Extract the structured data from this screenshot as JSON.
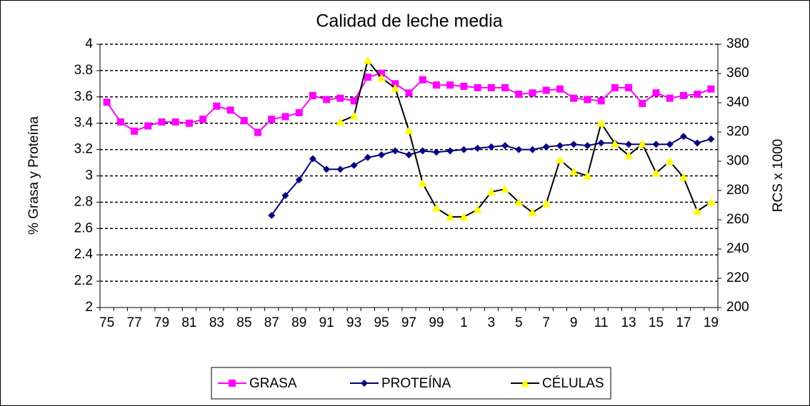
{
  "chart_data": {
    "type": "line",
    "title": "Calidad de leche media",
    "y_label": "% Grasa y Proteína",
    "y2_label": "RCS x 1000",
    "categories": [
      "75",
      null,
      "77",
      null,
      "79",
      null,
      "81",
      null,
      "83",
      null,
      "85",
      null,
      "87",
      null,
      "89",
      null,
      "91",
      null,
      "93",
      null,
      "95",
      null,
      "97",
      null,
      "99",
      null,
      "1",
      null,
      "3",
      null,
      "5",
      null,
      "7",
      null,
      "9",
      null,
      "11",
      null,
      "13",
      null,
      "15",
      null,
      "17",
      null,
      "19"
    ],
    "ylim": [
      2,
      4
    ],
    "yticks": [
      2,
      2.2,
      2.4,
      2.6,
      2.8,
      3,
      3.2,
      3.4,
      3.6,
      3.8,
      4
    ],
    "y2lim": [
      200,
      380
    ],
    "y2ticks": [
      200,
      220,
      240,
      260,
      280,
      300,
      320,
      340,
      360,
      380
    ],
    "grid": true,
    "legend": "bottom",
    "series": [
      {
        "name": "GRASA",
        "color": "#ff00ff",
        "marker": "square",
        "values": [
          3.56,
          3.41,
          3.34,
          3.38,
          3.41,
          3.41,
          3.4,
          3.43,
          3.53,
          3.5,
          3.42,
          3.33,
          3.43,
          3.45,
          3.48,
          3.61,
          3.58,
          3.59,
          3.57,
          3.75,
          3.78,
          3.7,
          3.63,
          3.73,
          3.69,
          3.69,
          3.68,
          3.67,
          3.67,
          3.67,
          3.62,
          3.63,
          3.65,
          3.66,
          3.59,
          3.58,
          3.57,
          3.67,
          3.67,
          3.55,
          3.63,
          3.59,
          3.61,
          3.62,
          3.66
        ]
      },
      {
        "name": "PROTEÍNA",
        "color": "#000080",
        "marker": "diamond",
        "values": [
          null,
          null,
          null,
          null,
          null,
          null,
          null,
          null,
          null,
          null,
          null,
          null,
          2.7,
          2.85,
          2.97,
          3.13,
          3.05,
          3.05,
          3.08,
          3.14,
          3.16,
          3.19,
          3.16,
          3.19,
          3.18,
          3.19,
          3.2,
          3.21,
          3.22,
          3.23,
          3.2,
          3.2,
          3.22,
          3.23,
          3.24,
          3.23,
          3.25,
          3.25,
          3.24,
          3.24,
          3.24,
          3.24,
          3.3,
          3.25,
          3.28
        ]
      },
      {
        "name": "CÉLULAS",
        "color": "#000000",
        "marker_color": "#ffff00",
        "marker": "triangle",
        "axis": "y2",
        "values": [
          null,
          null,
          null,
          null,
          null,
          null,
          null,
          null,
          null,
          null,
          null,
          null,
          null,
          null,
          null,
          null,
          null,
          327,
          331,
          369,
          357,
          350,
          321,
          285,
          268,
          262,
          262,
          267,
          279,
          281,
          272,
          265,
          271,
          301,
          293,
          290,
          326,
          312,
          304,
          312,
          292,
          300,
          289,
          266,
          272
        ]
      }
    ]
  }
}
